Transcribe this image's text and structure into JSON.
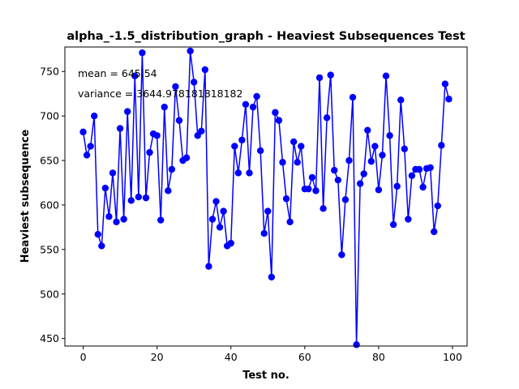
{
  "chart_data": {
    "type": "line",
    "title": "alpha_-1.5_distribution_graph - Heaviest Subsequences Test",
    "xlabel": "Test no.",
    "ylabel": "Heaviest subsequence",
    "xlim": [
      -4.95,
      103.95
    ],
    "ylim": [
      441.5,
      777.5
    ],
    "xticks": [
      0,
      20,
      40,
      60,
      80,
      100
    ],
    "yticks": [
      450,
      500,
      550,
      600,
      650,
      700,
      750
    ],
    "grid": false,
    "legend": "none",
    "series_color": "#0000ff",
    "annotations": [
      "mean = 645.54",
      "variance = 3644.978181818182"
    ],
    "series": [
      {
        "x": [
          0,
          1,
          2,
          3,
          4,
          5,
          6,
          7,
          8,
          9,
          10,
          11,
          12,
          13,
          14,
          15,
          16,
          17,
          18,
          19,
          20,
          21,
          22,
          23,
          24,
          25,
          26,
          27,
          28,
          29,
          30,
          31,
          32,
          33,
          34,
          35,
          36,
          37,
          38,
          39,
          40,
          41,
          42,
          43,
          44,
          45,
          46,
          47,
          48,
          49,
          50,
          51,
          52,
          53,
          54,
          55,
          56,
          57,
          58,
          59,
          60,
          61,
          62,
          63,
          64,
          65,
          66,
          67,
          68,
          69,
          70,
          71,
          72,
          73,
          74,
          75,
          76,
          77,
          78,
          79,
          80,
          81,
          82,
          83,
          84,
          85,
          86,
          87,
          88,
          89,
          90,
          91,
          92,
          93,
          94,
          95,
          96,
          97,
          98,
          99
        ],
        "values": [
          682,
          656,
          666,
          700,
          567,
          554,
          619,
          587,
          636,
          581,
          686,
          584,
          705,
          605,
          745,
          609,
          771,
          608,
          659,
          680,
          678,
          583,
          710,
          616,
          640,
          733,
          695,
          650,
          653,
          773,
          738,
          678,
          683,
          752,
          531,
          584,
          604,
          575,
          593,
          554,
          557,
          666,
          636,
          673,
          713,
          636,
          710,
          722,
          661,
          568,
          593,
          519,
          704,
          695,
          648,
          607,
          581,
          671,
          648,
          666,
          618,
          618,
          631,
          616,
          743,
          596,
          698,
          746,
          639,
          628,
          544,
          606,
          650,
          721,
          443,
          624,
          635,
          684,
          649,
          666,
          617,
          656,
          745,
          678,
          578,
          621,
          718,
          663,
          584,
          633,
          640,
          640,
          620,
          641,
          642,
          570,
          599,
          667,
          736,
          719
        ]
      }
    ]
  }
}
